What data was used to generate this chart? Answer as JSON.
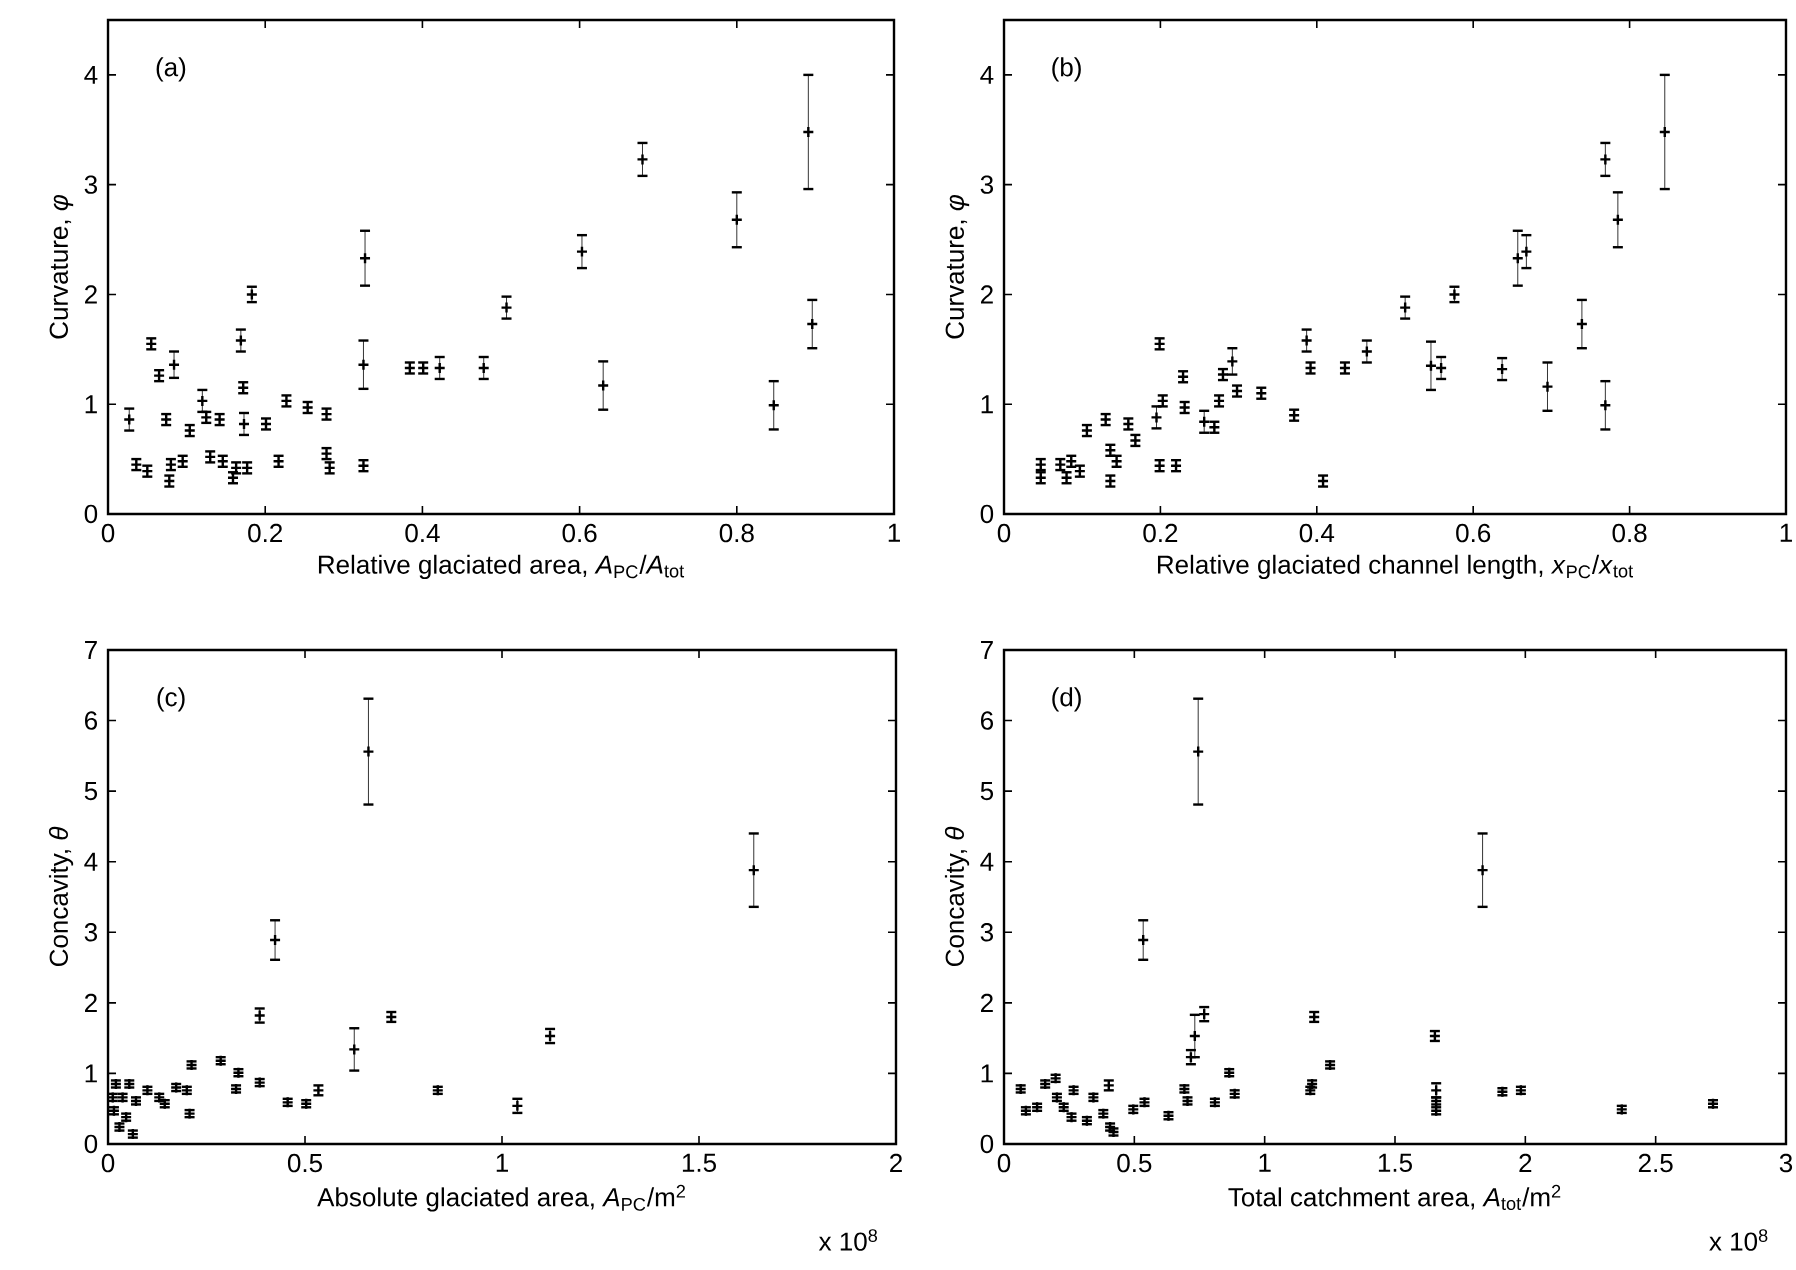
{
  "chart_data": [
    {
      "type": "scatter",
      "annotations": [
        "(a)"
      ],
      "xlabel": "Relative glaciated area, *A*$_{PC}$/*A*$_{tot}$",
      "ylabel": "Curvature, *φ*",
      "xlim": [
        0,
        1
      ],
      "ylim": [
        0,
        4.5
      ],
      "xticks": [
        0,
        0.2,
        0.4,
        0.6,
        0.8,
        1
      ],
      "yticks": [
        0,
        1,
        2,
        3,
        4
      ],
      "marker": "cross",
      "series": [
        {
          "color": "#000000",
          "x": [
            0.027,
            0.036,
            0.05,
            0.055,
            0.065,
            0.074,
            0.084,
            0.078,
            0.08,
            0.095,
            0.104,
            0.12,
            0.125,
            0.13,
            0.146,
            0.142,
            0.159,
            0.163,
            0.169,
            0.172,
            0.173,
            0.177,
            0.183,
            0.201,
            0.217,
            0.227,
            0.254,
            0.278,
            0.278,
            0.282,
            0.325,
            0.327,
            0.325,
            0.384,
            0.401,
            0.422,
            0.478,
            0.507,
            0.603,
            0.63,
            0.68,
            0.8,
            0.847,
            0.891,
            0.896
          ],
          "values": [
            0.86,
            0.45,
            0.39,
            1.55,
            1.26,
            0.86,
            1.36,
            0.3,
            0.45,
            0.48,
            0.76,
            1.03,
            0.88,
            0.52,
            0.48,
            0.86,
            0.33,
            0.42,
            1.58,
            1.15,
            0.82,
            0.42,
            2.0,
            0.82,
            0.48,
            1.03,
            0.97,
            0.91,
            0.55,
            0.42,
            1.36,
            2.33,
            0.44,
            1.33,
            1.33,
            1.33,
            1.33,
            1.88,
            2.39,
            1.17,
            3.23,
            2.68,
            0.99,
            3.48,
            1.73
          ],
          "errors": [
            0.1,
            0.05,
            0.05,
            0.05,
            0.05,
            0.05,
            0.12,
            0.05,
            0.05,
            0.05,
            0.05,
            0.1,
            0.05,
            0.05,
            0.05,
            0.05,
            0.05,
            0.05,
            0.1,
            0.05,
            0.1,
            0.05,
            0.07,
            0.05,
            0.05,
            0.05,
            0.05,
            0.05,
            0.05,
            0.05,
            0.22,
            0.25,
            0.05,
            0.05,
            0.05,
            0.1,
            0.1,
            0.1,
            0.15,
            0.22,
            0.15,
            0.25,
            0.22,
            0.52,
            0.22
          ]
        }
      ]
    },
    {
      "type": "scatter",
      "annotations": [
        "(b)"
      ],
      "xlabel": "Relative glaciated channel length, *x*$_{PC}$/*x*$_{tot}$",
      "ylabel": "Curvature, *φ*",
      "xlim": [
        0,
        1
      ],
      "ylim": [
        0,
        4.5
      ],
      "xticks": [
        0,
        0.2,
        0.4,
        0.6,
        0.8,
        1
      ],
      "yticks": [
        0,
        1,
        2,
        3,
        4
      ],
      "marker": "cross",
      "series": [
        {
          "color": "#000000",
          "x": [
            0.047,
            0.047,
            0.072,
            0.08,
            0.086,
            0.097,
            0.106,
            0.13,
            0.136,
            0.136,
            0.144,
            0.159,
            0.168,
            0.199,
            0.195,
            0.203,
            0.199,
            0.22,
            0.229,
            0.231,
            0.256,
            0.269,
            0.275,
            0.28,
            0.292,
            0.298,
            0.329,
            0.371,
            0.387,
            0.392,
            0.408,
            0.436,
            0.464,
            0.513,
            0.546,
            0.559,
            0.576,
            0.637,
            0.657,
            0.668,
            0.695,
            0.739,
            0.769,
            0.769,
            0.785,
            0.845
          ],
          "values": [
            0.45,
            0.33,
            0.45,
            0.33,
            0.48,
            0.39,
            0.76,
            0.86,
            0.58,
            0.3,
            0.48,
            0.82,
            0.67,
            1.55,
            0.88,
            1.03,
            0.44,
            0.44,
            1.25,
            0.97,
            0.84,
            0.79,
            1.03,
            1.27,
            1.39,
            1.12,
            1.1,
            0.9,
            1.58,
            1.33,
            0.3,
            1.33,
            1.48,
            1.88,
            1.35,
            1.33,
            2.0,
            1.32,
            2.33,
            2.39,
            1.16,
            1.73,
            3.23,
            0.99,
            2.68,
            3.48
          ],
          "errors": [
            0.05,
            0.05,
            0.05,
            0.05,
            0.05,
            0.05,
            0.05,
            0.05,
            0.05,
            0.05,
            0.05,
            0.05,
            0.05,
            0.05,
            0.1,
            0.05,
            0.05,
            0.05,
            0.05,
            0.05,
            0.1,
            0.05,
            0.05,
            0.05,
            0.12,
            0.05,
            0.05,
            0.05,
            0.1,
            0.05,
            0.05,
            0.05,
            0.1,
            0.1,
            0.22,
            0.1,
            0.07,
            0.1,
            0.25,
            0.15,
            0.22,
            0.22,
            0.15,
            0.22,
            0.25,
            0.52
          ]
        }
      ]
    },
    {
      "type": "scatter",
      "annotations": [
        "(c)",
        "x 10$^{8}$"
      ],
      "xlabel": "Absolute glaciated area, *A*$_{PC}$/m$^{2}$",
      "ylabel": "Concavity, *θ*",
      "xlim": [
        0,
        2
      ],
      "ylim": [
        0,
        7
      ],
      "xticks": [
        0,
        0.5,
        1,
        1.5,
        2
      ],
      "yticks": [
        0,
        1,
        2,
        3,
        4,
        5,
        6,
        7
      ],
      "marker": "cross",
      "series": [
        {
          "color": "#000000",
          "x": [
            0.012,
            0.015,
            0.02,
            0.029,
            0.037,
            0.046,
            0.054,
            0.063,
            0.071,
            0.1,
            0.13,
            0.144,
            0.173,
            0.2,
            0.207,
            0.212,
            0.286,
            0.331,
            0.325,
            0.385,
            0.385,
            0.424,
            0.456,
            0.503,
            0.534,
            0.625,
            0.661,
            0.719,
            0.837,
            1.039,
            1.122,
            1.639
          ],
          "values": [
            0.66,
            0.47,
            0.85,
            0.24,
            0.66,
            0.38,
            0.85,
            0.14,
            0.61,
            0.76,
            0.66,
            0.57,
            0.8,
            0.76,
            0.43,
            1.12,
            1.18,
            1.01,
            0.78,
            0.87,
            1.82,
            2.89,
            0.59,
            0.57,
            0.76,
            1.34,
            5.56,
            1.8,
            0.76,
            0.54,
            1.53,
            3.88
          ],
          "errors": [
            0.05,
            0.05,
            0.05,
            0.05,
            0.05,
            0.05,
            0.05,
            0.05,
            0.05,
            0.05,
            0.05,
            0.05,
            0.05,
            0.05,
            0.05,
            0.05,
            0.05,
            0.05,
            0.05,
            0.05,
            0.1,
            0.28,
            0.05,
            0.05,
            0.07,
            0.3,
            0.75,
            0.07,
            0.05,
            0.1,
            0.1,
            0.52
          ]
        }
      ]
    },
    {
      "type": "scatter",
      "annotations": [
        "(d)",
        "x 10$^{8}$"
      ],
      "xlabel": "Total catchment area, *A*$_{tot}$/m$^{2}$",
      "ylabel": "Concavity, *θ*",
      "xlim": [
        0,
        3
      ],
      "ylim": [
        0,
        7
      ],
      "xticks": [
        0,
        0.5,
        1,
        1.5,
        2,
        2.5,
        3
      ],
      "yticks": [
        0,
        1,
        2,
        3,
        4,
        5,
        6,
        7
      ],
      "marker": "cross",
      "series": [
        {
          "color": "#000000",
          "x": [
            0.064,
            0.084,
            0.127,
            0.158,
            0.198,
            0.203,
            0.229,
            0.259,
            0.267,
            0.318,
            0.343,
            0.381,
            0.402,
            0.407,
            0.42,
            0.496,
            0.539,
            0.534,
            0.631,
            0.692,
            0.704,
            0.717,
            0.732,
            0.745,
            0.768,
            0.809,
            0.864,
            0.885,
            1.175,
            1.182,
            1.19,
            1.251,
            1.653,
            1.658,
            1.658,
            1.658,
            1.836,
            1.912,
            1.983,
            2.37,
            2.72
          ],
          "values": [
            0.78,
            0.47,
            0.52,
            0.85,
            0.93,
            0.66,
            0.52,
            0.38,
            0.76,
            0.33,
            0.66,
            0.43,
            0.83,
            0.24,
            0.17,
            0.49,
            0.59,
            2.89,
            0.4,
            0.78,
            0.61,
            1.23,
            1.53,
            5.56,
            1.84,
            0.59,
            1.01,
            0.71,
            0.76,
            0.85,
            1.8,
            1.12,
            1.53,
            0.76,
            0.47,
            0.61,
            3.88,
            0.74,
            0.76,
            0.49,
            0.57
          ],
          "errors": [
            0.05,
            0.05,
            0.05,
            0.05,
            0.05,
            0.05,
            0.05,
            0.05,
            0.05,
            0.05,
            0.05,
            0.05,
            0.07,
            0.05,
            0.05,
            0.05,
            0.05,
            0.28,
            0.05,
            0.05,
            0.05,
            0.1,
            0.3,
            0.75,
            0.1,
            0.05,
            0.05,
            0.05,
            0.05,
            0.05,
            0.07,
            0.05,
            0.07,
            0.1,
            0.05,
            0.05,
            0.52,
            0.05,
            0.05,
            0.05,
            0.05
          ]
        }
      ]
    }
  ]
}
